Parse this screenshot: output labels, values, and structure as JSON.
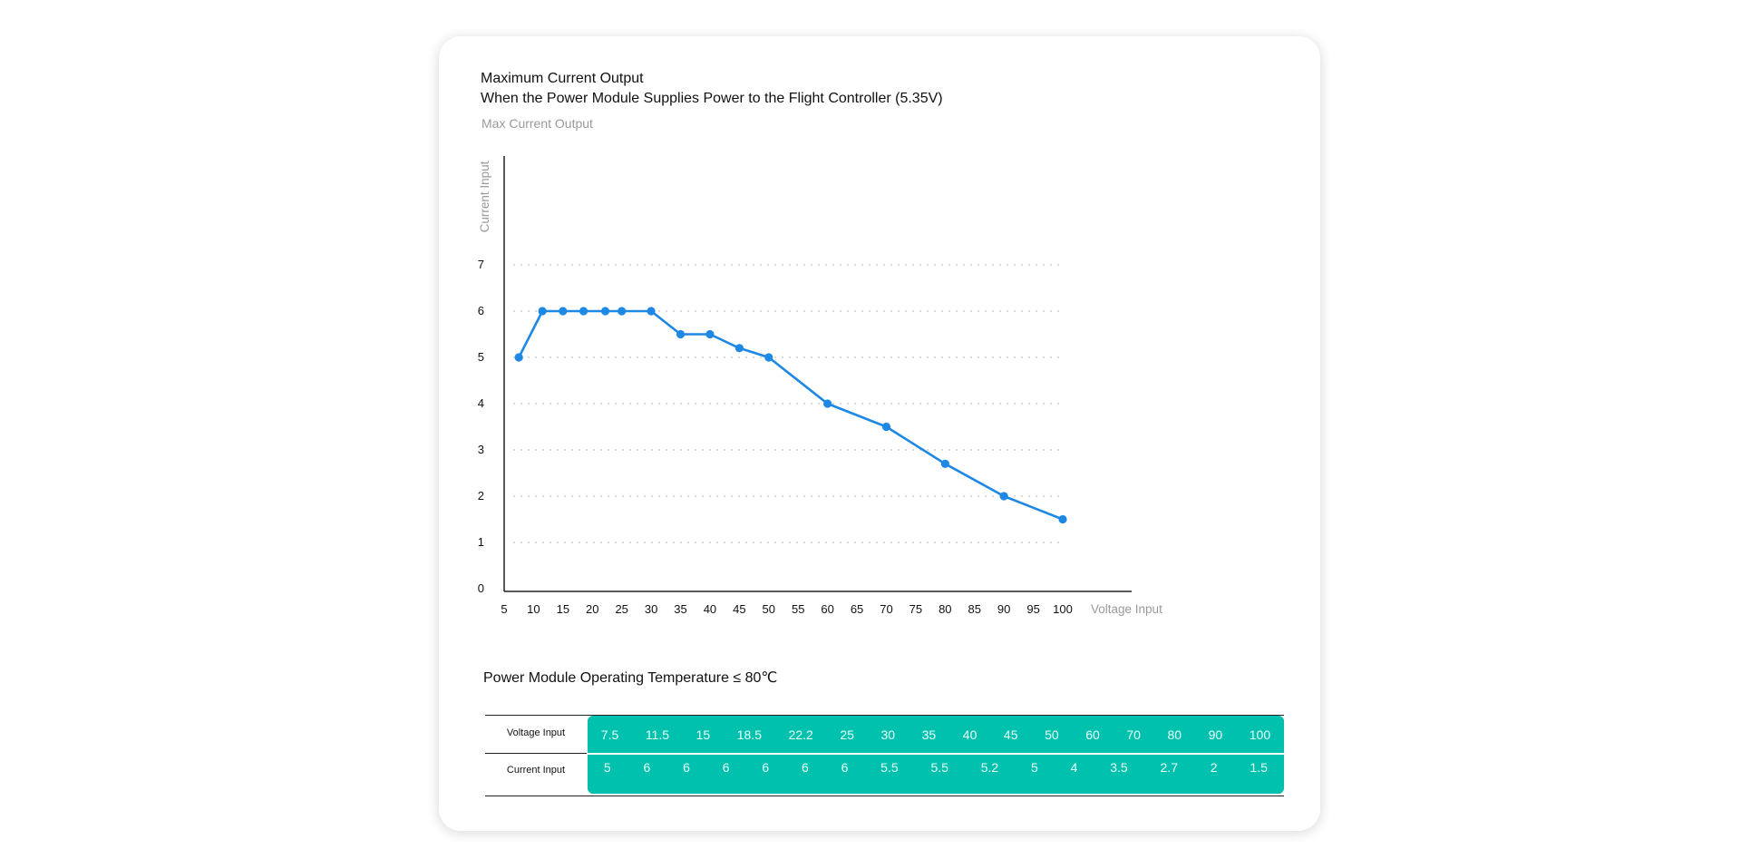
{
  "title": {
    "line1": "Maximum Current Output",
    "line2": "When the Power Module Supplies Power to the Flight Controller (5.35V)"
  },
  "chart_subtitle": "Max Current Output",
  "chart_data": {
    "type": "line",
    "title": "Max Current Output",
    "xlabel": "Voltage Input",
    "ylabel": "Current Input",
    "x_ticks": [
      5,
      10,
      15,
      20,
      25,
      30,
      35,
      40,
      45,
      50,
      55,
      60,
      65,
      70,
      75,
      80,
      85,
      90,
      95,
      100
    ],
    "y_ticks": [
      0,
      1,
      2,
      3,
      4,
      5,
      6,
      7
    ],
    "xlim": [
      5,
      100
    ],
    "ylim": [
      0,
      7
    ],
    "grid": "horizontal dashed",
    "color": "#1e88e5",
    "series": [
      {
        "x": [
          7.5,
          11.5,
          15,
          18.5,
          22.2,
          25,
          30,
          35,
          40,
          45,
          50,
          60,
          70,
          80,
          90,
          100
        ],
        "y": [
          5,
          6,
          6,
          6,
          6,
          6,
          6,
          5.5,
          5.5,
          5.2,
          5,
          4,
          3.5,
          2.7,
          2,
          1.5
        ]
      }
    ]
  },
  "temperature_note": "Power Module Operating Temperature ≤ 80℃",
  "table": {
    "row_labels": [
      "Voltage Input",
      "Current Input"
    ],
    "voltage": [
      "7.5",
      "11.5",
      "15",
      "18.5",
      "22.2",
      "25",
      "30",
      "35",
      "40",
      "45",
      "50",
      "60",
      "70",
      "80",
      "90",
      "100"
    ],
    "current": [
      "5",
      "6",
      "6",
      "6",
      "6",
      "6",
      "6",
      "5.5",
      "5.5",
      "5.2",
      "5",
      "4",
      "3.5",
      "2.7",
      "2",
      "1.5"
    ],
    "accent_color": "#00c1ad"
  }
}
